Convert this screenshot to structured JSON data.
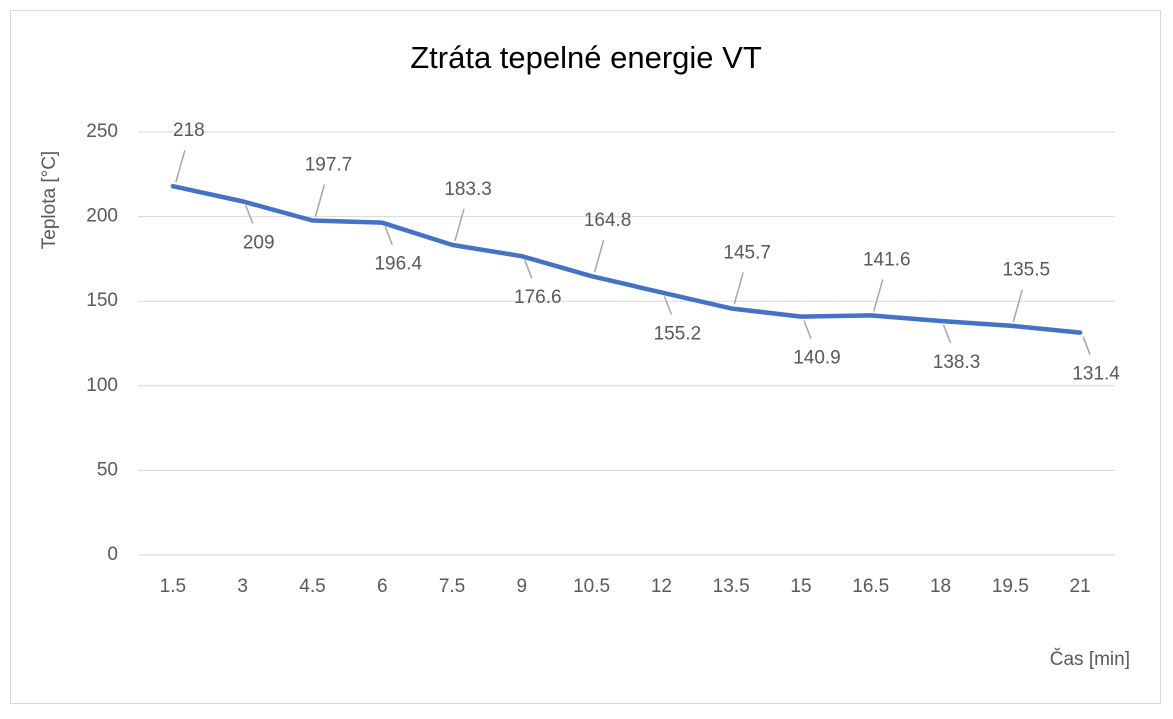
{
  "chart_data": {
    "type": "line",
    "title": "Ztráta tepelné energie VT",
    "x_label": "Čas [min]",
    "y_label": "Teplota [°C]",
    "categories": [
      "1.5",
      "3",
      "4.5",
      "6",
      "7.5",
      "9",
      "10.5",
      "12",
      "13.5",
      "15",
      "16.5",
      "18",
      "19.5",
      "21"
    ],
    "series": [
      {
        "name": "Teplota",
        "color": "#4472c4",
        "values": [
          218,
          209,
          197.7,
          196.4,
          183.3,
          176.6,
          164.8,
          155.2,
          145.7,
          140.9,
          141.6,
          138.3,
          135.5,
          131.4
        ]
      }
    ],
    "ylim": [
      0,
      250
    ],
    "yticks": [
      0,
      50,
      100,
      150,
      200,
      250
    ],
    "grid": true,
    "data_labels": true
  }
}
